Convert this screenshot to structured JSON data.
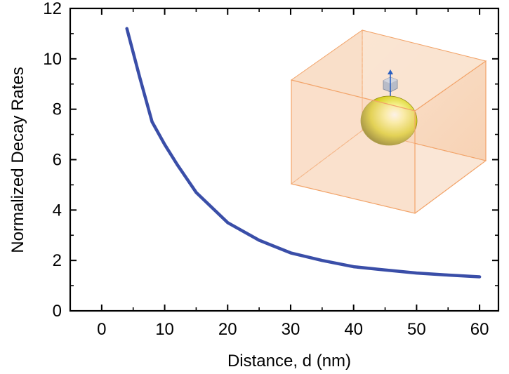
{
  "chart_data": {
    "type": "line",
    "xlabel": "Distance, d (nm)",
    "ylabel": "Normalized Decay Rates",
    "xlim": [
      -5,
      63
    ],
    "ylim": [
      0,
      12
    ],
    "x_ticks": [
      0,
      10,
      20,
      30,
      40,
      50,
      60
    ],
    "y_ticks": [
      0,
      2,
      4,
      6,
      8,
      10,
      12
    ],
    "grid": false,
    "series": [
      {
        "color": "#3a4ea8",
        "x": [
          4,
          6,
          8,
          10,
          12,
          15,
          20,
          25,
          30,
          35,
          40,
          45,
          50,
          55,
          60
        ],
        "y": [
          11.2,
          9.3,
          7.5,
          6.6,
          5.8,
          4.7,
          3.5,
          2.8,
          2.3,
          2.0,
          1.75,
          1.62,
          1.5,
          1.42,
          1.35
        ]
      }
    ],
    "inset": {
      "description_icon": "gold-nanosphere-in-box-icon",
      "sphere_color": "#e8e040",
      "box_color": "#f5a060",
      "dipole_color": "#2a5fc0"
    }
  }
}
